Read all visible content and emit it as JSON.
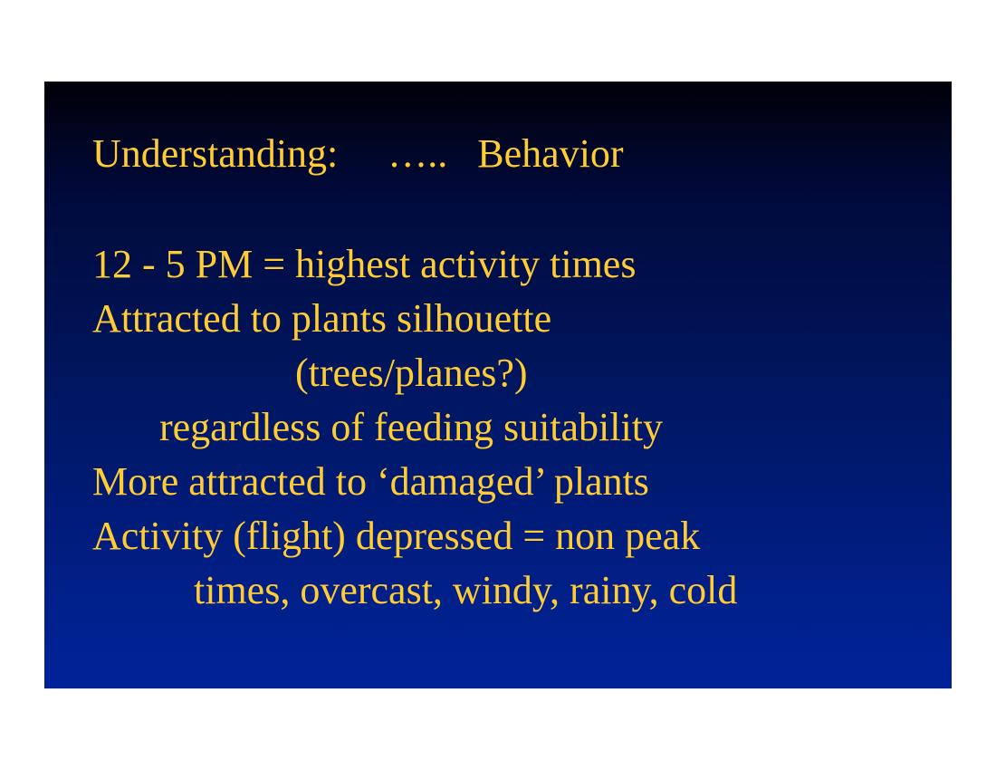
{
  "slide": {
    "background_top": "#000008",
    "background_bottom": "#00239a",
    "text_color": "#ffcc33",
    "heading": "Understanding:     …..   Behavior",
    "lines": [
      "12 - 5 PM = highest activity times",
      "Attracted to plants silhouette",
      "(trees/planes?)",
      "regardless of feeding suitability",
      "More attracted to ‘damaged’ plants",
      "Activity (flight) depressed = non peak",
      "times, overcast, windy, rainy, cold"
    ]
  }
}
